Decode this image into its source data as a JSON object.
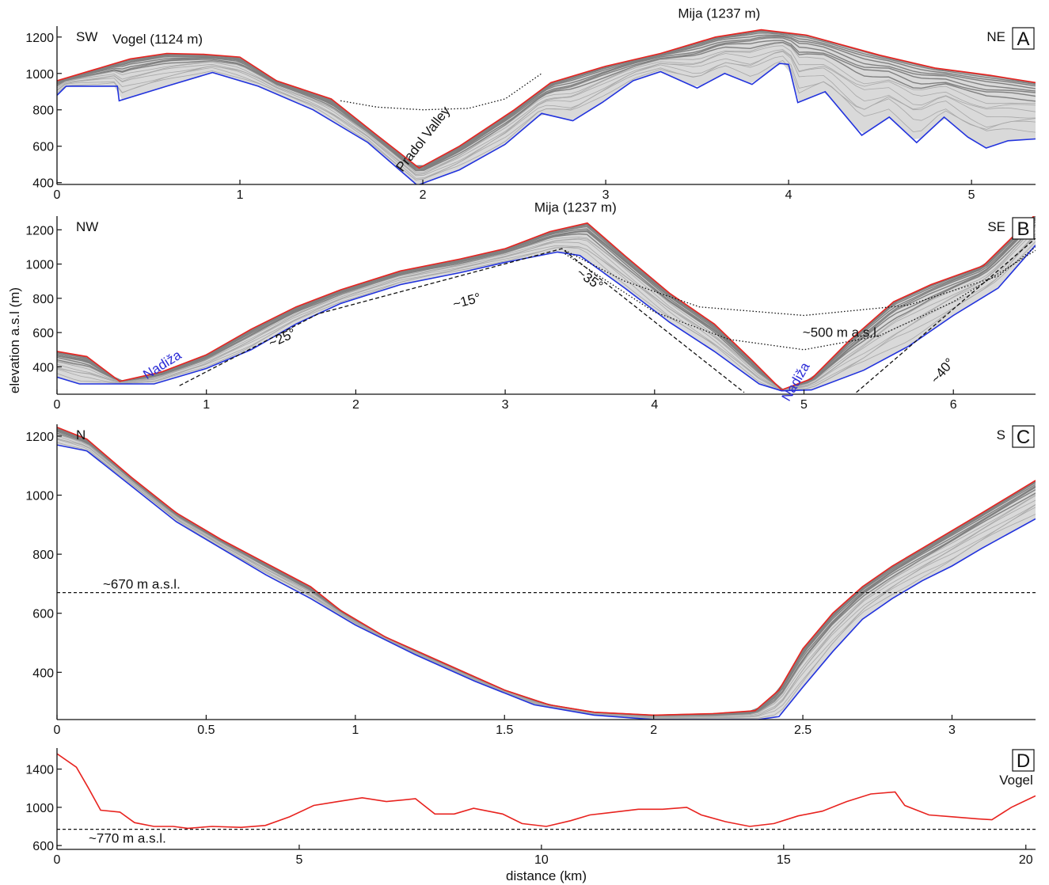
{
  "xlabel": "distance (km)",
  "ylabel": "elevation a.s.l (m)",
  "chart_data": [
    {
      "type": "line",
      "panel": "A",
      "xlim": [
        0,
        5.35
      ],
      "ylim": [
        390,
        1260
      ],
      "x_ticks": [
        0,
        1,
        2,
        3,
        4,
        5
      ],
      "y_ticks": [
        400,
        600,
        800,
        1000,
        1200
      ],
      "direction_left": "SW",
      "direction_right": "NE",
      "annotations": [
        {
          "id": "vogel",
          "text": "Vogel (1124 m)",
          "x": 0.55,
          "y": 1165
        },
        {
          "id": "mija",
          "text": "Mija (1237 m)",
          "x": 3.62,
          "y": 1305
        },
        {
          "id": "pradol",
          "text": "Pradol Valley",
          "x": 2.02,
          "y": 625,
          "rotate": -52
        }
      ],
      "series": [
        {
          "role": "upper",
          "color": "#e8231f",
          "points": [
            [
              0,
              960
            ],
            [
              0.2,
              1020
            ],
            [
              0.4,
              1080
            ],
            [
              0.6,
              1110
            ],
            [
              0.8,
              1105
            ],
            [
              1.0,
              1090
            ],
            [
              1.2,
              960
            ],
            [
              1.5,
              860
            ],
            [
              1.75,
              660
            ],
            [
              1.98,
              480
            ],
            [
              2.2,
              600
            ],
            [
              2.5,
              800
            ],
            [
              2.7,
              950
            ],
            [
              3.0,
              1040
            ],
            [
              3.3,
              1110
            ],
            [
              3.6,
              1200
            ],
            [
              3.85,
              1240
            ],
            [
              4.1,
              1210
            ],
            [
              4.5,
              1100
            ],
            [
              4.8,
              1030
            ],
            [
              5.1,
              990
            ],
            [
              5.35,
              950
            ]
          ]
        },
        {
          "role": "lower",
          "color": "#2233dd",
          "points": [
            [
              0,
              880
            ],
            [
              0.05,
              930
            ],
            [
              0.33,
              930
            ],
            [
              0.34,
              850
            ],
            [
              0.6,
              930
            ],
            [
              0.85,
              1005
            ],
            [
              1.1,
              930
            ],
            [
              1.4,
              800
            ],
            [
              1.7,
              620
            ],
            [
              1.97,
              385
            ],
            [
              2.2,
              470
            ],
            [
              2.45,
              610
            ],
            [
              2.65,
              780
            ],
            [
              2.82,
              740
            ],
            [
              2.98,
              840
            ],
            [
              3.15,
              960
            ],
            [
              3.3,
              1010
            ],
            [
              3.5,
              920
            ],
            [
              3.65,
              1000
            ],
            [
              3.8,
              940
            ],
            [
              3.95,
              1055
            ],
            [
              4.0,
              1050
            ],
            [
              4.05,
              840
            ],
            [
              4.2,
              900
            ],
            [
              4.4,
              660
            ],
            [
              4.55,
              760
            ],
            [
              4.7,
              620
            ],
            [
              4.85,
              760
            ],
            [
              4.98,
              650
            ],
            [
              5.08,
              590
            ],
            [
              5.2,
              630
            ],
            [
              5.35,
              640
            ]
          ]
        }
      ],
      "reference_curves": [
        {
          "style": "dotted",
          "points": [
            [
              1.55,
              850
            ],
            [
              1.75,
              815
            ],
            [
              2.0,
              800
            ],
            [
              2.25,
              808
            ],
            [
              2.45,
              860
            ],
            [
              2.65,
              1000
            ]
          ]
        }
      ]
    },
    {
      "type": "line",
      "panel": "B",
      "xlim": [
        0,
        6.55
      ],
      "ylim": [
        240,
        1280
      ],
      "x_ticks": [
        0,
        1,
        2,
        3,
        4,
        5,
        6
      ],
      "y_ticks": [
        400,
        600,
        800,
        1000,
        1200
      ],
      "direction_left": "NW",
      "direction_right": "SE",
      "annotations": [
        {
          "id": "mija",
          "text": "Mija (1237 m)",
          "x": 3.47,
          "y": 1305
        },
        {
          "id": "nadiza1",
          "text": "Nadiža",
          "x": 0.72,
          "y": 390,
          "rotate": -32,
          "color": "blue"
        },
        {
          "id": "nadiza2",
          "text": "Nadiža",
          "x": 4.97,
          "y": 300,
          "rotate": -60,
          "color": "blue"
        },
        {
          "id": "a25",
          "text": "~25°",
          "x": 1.52,
          "y": 545,
          "rotate": -25
        },
        {
          "id": "a15",
          "text": "~15°",
          "x": 2.75,
          "y": 760,
          "rotate": -15
        },
        {
          "id": "a35",
          "text": "~35°",
          "x": 3.55,
          "y": 890,
          "rotate": 35
        },
        {
          "id": "a40",
          "text": "~40°",
          "x": 5.95,
          "y": 360,
          "rotate": -50
        },
        {
          "id": "elev500",
          "text": "~500 m a.s.l.",
          "x": 5.25,
          "y": 575
        }
      ],
      "series": [
        {
          "role": "upper",
          "color": "#e8231f",
          "points": [
            [
              0,
              490
            ],
            [
              0.2,
              460
            ],
            [
              0.42,
              315
            ],
            [
              0.7,
              370
            ],
            [
              1.0,
              470
            ],
            [
              1.3,
              620
            ],
            [
              1.6,
              750
            ],
            [
              1.9,
              850
            ],
            [
              2.3,
              960
            ],
            [
              2.7,
              1030
            ],
            [
              3.0,
              1090
            ],
            [
              3.3,
              1190
            ],
            [
              3.55,
              1240
            ],
            [
              3.8,
              1050
            ],
            [
              4.1,
              830
            ],
            [
              4.4,
              650
            ],
            [
              4.65,
              440
            ],
            [
              4.85,
              265
            ],
            [
              5.05,
              330
            ],
            [
              5.3,
              550
            ],
            [
              5.6,
              780
            ],
            [
              5.85,
              880
            ],
            [
              6.2,
              990
            ],
            [
              6.55,
              1290
            ]
          ]
        },
        {
          "role": "lower",
          "color": "#2233dd",
          "points": [
            [
              0,
              340
            ],
            [
              0.15,
              300
            ],
            [
              0.45,
              300
            ],
            [
              0.65,
              300
            ],
            [
              1.0,
              390
            ],
            [
              1.3,
              500
            ],
            [
              1.6,
              650
            ],
            [
              1.9,
              770
            ],
            [
              2.3,
              880
            ],
            [
              2.7,
              950
            ],
            [
              3.0,
              1010
            ],
            [
              3.35,
              1070
            ],
            [
              3.5,
              1050
            ],
            [
              3.8,
              860
            ],
            [
              4.1,
              660
            ],
            [
              4.4,
              490
            ],
            [
              4.7,
              300
            ],
            [
              4.85,
              260
            ],
            [
              5.05,
              265
            ],
            [
              5.4,
              380
            ],
            [
              5.7,
              520
            ],
            [
              6.0,
              700
            ],
            [
              6.3,
              860
            ],
            [
              6.55,
              1110
            ]
          ]
        }
      ],
      "reference_curves": [
        {
          "style": "dashed",
          "points": [
            [
              0.82,
              290
            ],
            [
              1.75,
              710
            ],
            [
              3.38,
              1090
            ],
            [
              4.6,
              250
            ]
          ]
        },
        {
          "style": "dashed",
          "points": [
            [
              5.35,
              250
            ],
            [
              6.55,
              1150
            ]
          ]
        },
        {
          "style": "dotted",
          "points": [
            [
              3.4,
              1080
            ],
            [
              3.8,
              900
            ],
            [
              4.3,
              750
            ],
            [
              5.0,
              700
            ],
            [
              5.7,
              760
            ],
            [
              6.3,
              930
            ],
            [
              6.55,
              1100
            ]
          ]
        },
        {
          "style": "dotted",
          "points": [
            [
              3.4,
              1060
            ],
            [
              4.0,
              720
            ],
            [
              4.5,
              560
            ],
            [
              5.0,
              500
            ],
            [
              5.5,
              580
            ],
            [
              6.0,
              780
            ],
            [
              6.55,
              1080
            ]
          ]
        }
      ]
    },
    {
      "type": "line",
      "panel": "C",
      "xlim": [
        0,
        3.28
      ],
      "ylim": [
        240,
        1240
      ],
      "x_ticks": [
        0,
        0.5,
        1,
        1.5,
        2,
        2.5,
        3
      ],
      "x_tick_labels": [
        "0",
        "0.5",
        "1",
        "1.5",
        "2",
        "2.5",
        "3"
      ],
      "y_ticks": [
        400,
        600,
        800,
        1000,
        1200
      ],
      "direction_left": "N",
      "direction_right": "S",
      "reference_level": {
        "value": 670,
        "text": "~670 m a.s.l."
      },
      "series": [
        {
          "role": "upper",
          "color": "#e8231f",
          "points": [
            [
              0,
              1230
            ],
            [
              0.1,
              1190
            ],
            [
              0.25,
              1060
            ],
            [
              0.4,
              940
            ],
            [
              0.55,
              850
            ],
            [
              0.7,
              770
            ],
            [
              0.85,
              690
            ],
            [
              0.95,
              610
            ],
            [
              1.1,
              520
            ],
            [
              1.3,
              430
            ],
            [
              1.5,
              340
            ],
            [
              1.65,
              290
            ],
            [
              1.8,
              265
            ],
            [
              2.0,
              255
            ],
            [
              2.2,
              260
            ],
            [
              2.34,
              270
            ],
            [
              2.42,
              340
            ],
            [
              2.5,
              480
            ],
            [
              2.6,
              600
            ],
            [
              2.7,
              690
            ],
            [
              2.8,
              760
            ],
            [
              2.9,
              820
            ],
            [
              3.0,
              880
            ],
            [
              3.1,
              940
            ],
            [
              3.28,
              1050
            ]
          ]
        },
        {
          "role": "lower",
          "color": "#2233dd",
          "points": [
            [
              0,
              1170
            ],
            [
              0.1,
              1150
            ],
            [
              0.25,
              1030
            ],
            [
              0.4,
              910
            ],
            [
              0.55,
              820
            ],
            [
              0.7,
              730
            ],
            [
              0.85,
              650
            ],
            [
              1.0,
              560
            ],
            [
              1.2,
              460
            ],
            [
              1.4,
              370
            ],
            [
              1.6,
              290
            ],
            [
              1.8,
              255
            ],
            [
              2.0,
              240
            ],
            [
              2.2,
              240
            ],
            [
              2.35,
              240
            ],
            [
              2.42,
              250
            ],
            [
              2.5,
              350
            ],
            [
              2.6,
              470
            ],
            [
              2.7,
              580
            ],
            [
              2.8,
              650
            ],
            [
              2.9,
              710
            ],
            [
              3.0,
              760
            ],
            [
              3.1,
              820
            ],
            [
              3.28,
              920
            ]
          ]
        }
      ]
    },
    {
      "type": "line",
      "panel": "D",
      "xlim": [
        0,
        20.2
      ],
      "ylim": [
        560,
        1620
      ],
      "x_ticks": [
        0,
        5,
        10,
        15,
        20
      ],
      "y_ticks": [
        600,
        1000,
        1400
      ],
      "annotations": [
        {
          "id": "vogel",
          "text": "Vogel",
          "x": 19.8,
          "y": 1240
        }
      ],
      "reference_level": {
        "value": 770,
        "text": "~770 m a.s.l."
      },
      "series": [
        {
          "role": "upper",
          "color": "#e8231f",
          "points": [
            [
              0,
              1560
            ],
            [
              0.4,
              1420
            ],
            [
              0.65,
              1200
            ],
            [
              0.9,
              970
            ],
            [
              1.3,
              950
            ],
            [
              1.6,
              840
            ],
            [
              2.0,
              800
            ],
            [
              2.4,
              800
            ],
            [
              2.7,
              780
            ],
            [
              3.2,
              800
            ],
            [
              3.8,
              790
            ],
            [
              4.3,
              810
            ],
            [
              4.8,
              900
            ],
            [
              5.3,
              1020
            ],
            [
              5.8,
              1060
            ],
            [
              6.3,
              1100
            ],
            [
              6.8,
              1060
            ],
            [
              7.4,
              1090
            ],
            [
              7.8,
              930
            ],
            [
              8.2,
              930
            ],
            [
              8.6,
              990
            ],
            [
              9.2,
              930
            ],
            [
              9.6,
              830
            ],
            [
              10.1,
              800
            ],
            [
              10.6,
              860
            ],
            [
              11.0,
              920
            ],
            [
              11.5,
              950
            ],
            [
              12.0,
              980
            ],
            [
              12.5,
              980
            ],
            [
              13.0,
              1000
            ],
            [
              13.3,
              920
            ],
            [
              13.8,
              850
            ],
            [
              14.3,
              800
            ],
            [
              14.8,
              830
            ],
            [
              15.3,
              910
            ],
            [
              15.8,
              960
            ],
            [
              16.3,
              1060
            ],
            [
              16.8,
              1140
            ],
            [
              17.3,
              1160
            ],
            [
              17.5,
              1020
            ],
            [
              18.0,
              920
            ],
            [
              18.5,
              900
            ],
            [
              19.0,
              880
            ],
            [
              19.3,
              870
            ],
            [
              19.7,
              1000
            ],
            [
              20.2,
              1120
            ]
          ]
        }
      ]
    }
  ],
  "panel_labels": [
    "A",
    "B",
    "C",
    "D"
  ]
}
